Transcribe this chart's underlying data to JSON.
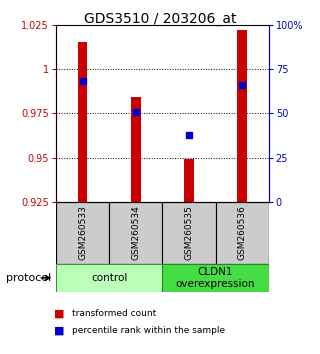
{
  "title": "GDS3510 / 203206_at",
  "samples": [
    "GSM260533",
    "GSM260534",
    "GSM260535",
    "GSM260536"
  ],
  "bar_values": [
    1.015,
    0.984,
    0.949,
    1.022
  ],
  "bar_bottom": 0.925,
  "blue_percentiles": [
    68,
    51,
    38,
    66
  ],
  "ylim_left": [
    0.925,
    1.025
  ],
  "ylim_right": [
    0,
    100
  ],
  "yticks_left": [
    0.925,
    0.95,
    0.975,
    1.0,
    1.025
  ],
  "yticks_right": [
    0,
    25,
    50,
    75,
    100
  ],
  "ytick_labels_left": [
    "0.925",
    "0.95",
    "0.975",
    "1",
    "1.025"
  ],
  "ytick_labels_right": [
    "0",
    "25",
    "50",
    "75",
    "100%"
  ],
  "bar_color": "#cc0000",
  "blue_color": "#0000cc",
  "control_color": "#bbffbb",
  "overexp_color": "#44dd44",
  "groups": [
    "control",
    "CLDN1\noverexpression"
  ],
  "protocol_label": "protocol",
  "legend_red": "transformed count",
  "legend_blue": "percentile rank within the sample",
  "bg_color": "#ffffff",
  "sample_bg": "#cccccc",
  "bar_width": 0.18
}
